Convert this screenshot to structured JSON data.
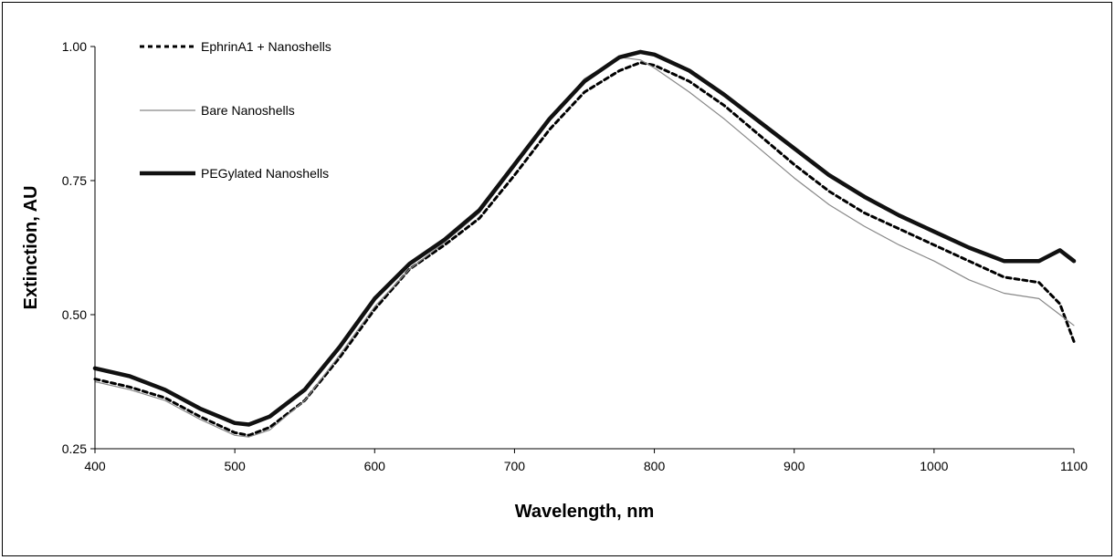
{
  "chart_data": {
    "type": "line",
    "title": "",
    "xlabel": "Wavelength, nm",
    "ylabel": "Extinction, AU",
    "xlim": [
      400,
      1100
    ],
    "ylim": [
      0.25,
      1.0
    ],
    "x_ticks": [
      "400",
      "500",
      "600",
      "700",
      "800",
      "900",
      "1000",
      "1100"
    ],
    "y_ticks": [
      "0.25",
      "0.50",
      "0.75",
      "1.00"
    ],
    "grid": false,
    "legend_position": "top-left",
    "series": [
      {
        "name": "EphrinA1 + Nanoshells",
        "style": "dashed",
        "color": "#000000",
        "x": [
          400,
          425,
          450,
          475,
          500,
          510,
          525,
          550,
          575,
          600,
          625,
          650,
          675,
          700,
          725,
          750,
          775,
          790,
          800,
          825,
          850,
          875,
          900,
          925,
          950,
          975,
          1000,
          1025,
          1050,
          1075,
          1090,
          1100
        ],
        "y": [
          0.38,
          0.365,
          0.345,
          0.31,
          0.28,
          0.275,
          0.29,
          0.34,
          0.42,
          0.51,
          0.585,
          0.63,
          0.68,
          0.76,
          0.845,
          0.915,
          0.955,
          0.97,
          0.965,
          0.935,
          0.89,
          0.835,
          0.78,
          0.73,
          0.69,
          0.66,
          0.63,
          0.6,
          0.57,
          0.56,
          0.52,
          0.45
        ]
      },
      {
        "name": "Bare Nanoshells",
        "style": "thin",
        "color": "#888888",
        "x": [
          400,
          425,
          450,
          475,
          500,
          510,
          525,
          550,
          575,
          600,
          625,
          650,
          675,
          700,
          725,
          750,
          775,
          790,
          800,
          825,
          850,
          875,
          900,
          925,
          950,
          975,
          1000,
          1025,
          1050,
          1075,
          1090,
          1100
        ],
        "y": [
          0.375,
          0.36,
          0.34,
          0.305,
          0.275,
          0.272,
          0.285,
          0.34,
          0.425,
          0.515,
          0.585,
          0.635,
          0.69,
          0.775,
          0.865,
          0.94,
          0.98,
          0.975,
          0.96,
          0.915,
          0.865,
          0.81,
          0.755,
          0.705,
          0.665,
          0.63,
          0.6,
          0.565,
          0.54,
          0.53,
          0.5,
          0.48
        ]
      },
      {
        "name": "PEGylated Nanoshells",
        "style": "thick",
        "color": "#111111",
        "x": [
          400,
          425,
          450,
          475,
          500,
          510,
          525,
          550,
          575,
          600,
          625,
          650,
          675,
          700,
          725,
          750,
          775,
          790,
          800,
          825,
          850,
          875,
          900,
          925,
          950,
          975,
          1000,
          1025,
          1050,
          1075,
          1090,
          1100
        ],
        "y": [
          0.4,
          0.385,
          0.36,
          0.325,
          0.298,
          0.295,
          0.31,
          0.36,
          0.44,
          0.53,
          0.595,
          0.64,
          0.695,
          0.78,
          0.865,
          0.935,
          0.98,
          0.99,
          0.985,
          0.955,
          0.91,
          0.86,
          0.81,
          0.76,
          0.72,
          0.685,
          0.655,
          0.625,
          0.6,
          0.6,
          0.62,
          0.6
        ]
      }
    ]
  }
}
